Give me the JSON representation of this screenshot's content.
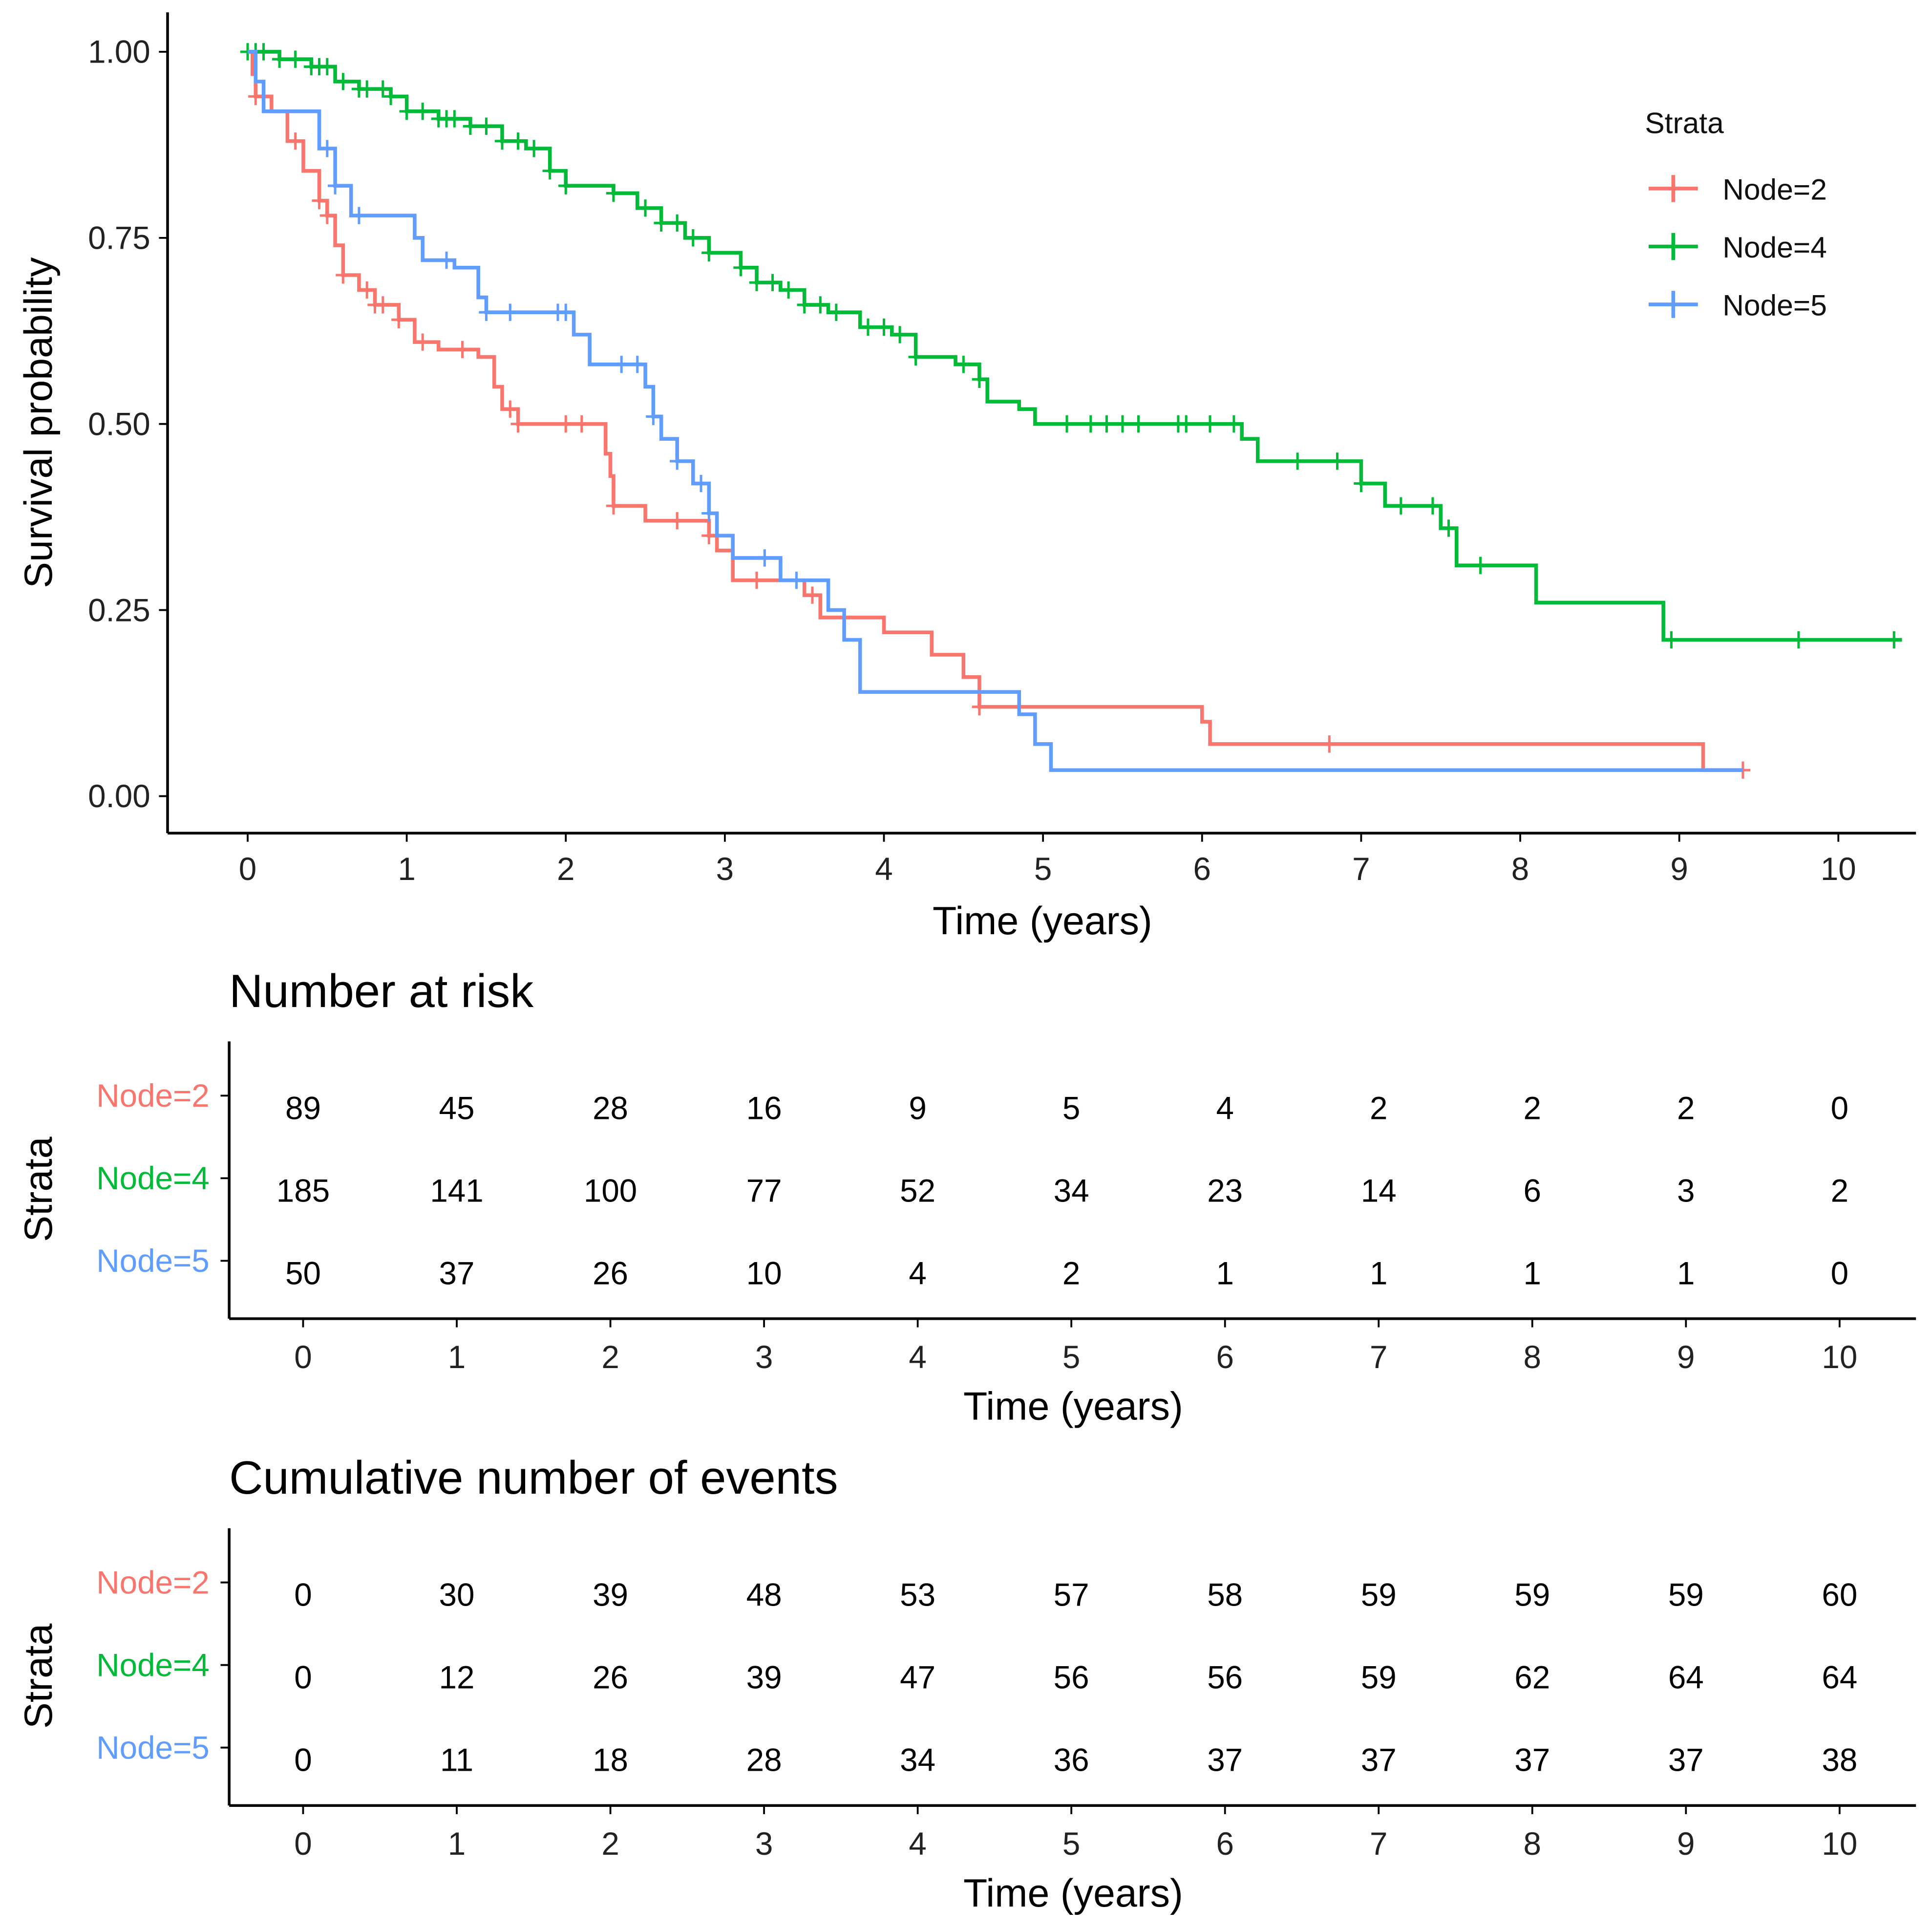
{
  "chart_data": [
    {
      "type": "line",
      "subtype": "kaplan-meier",
      "xlabel": "Time (years)",
      "ylabel": "Survival probability",
      "xlim": [
        0,
        10.5
      ],
      "ylim": [
        0,
        1
      ],
      "xticks": [
        "0",
        "1",
        "2",
        "3",
        "4",
        "5",
        "6",
        "7",
        "8",
        "9",
        "10"
      ],
      "yticks": [
        "0.00",
        "0.25",
        "0.50",
        "0.75",
        "1.00"
      ],
      "grid": false,
      "legend": {
        "title": "Strata",
        "position": "top-right"
      },
      "series": [
        {
          "name": "Node=2",
          "color": "#F8766D",
          "end": 9.4,
          "steps": [
            [
              0,
              1
            ],
            [
              0.03,
              0.97
            ],
            [
              0.05,
              0.94
            ],
            [
              0.15,
              0.92
            ],
            [
              0.25,
              0.88
            ],
            [
              0.35,
              0.84
            ],
            [
              0.45,
              0.8
            ],
            [
              0.5,
              0.78
            ],
            [
              0.55,
              0.74
            ],
            [
              0.6,
              0.7
            ],
            [
              0.7,
              0.68
            ],
            [
              0.8,
              0.66
            ],
            [
              0.95,
              0.64
            ],
            [
              1.05,
              0.61
            ],
            [
              1.2,
              0.6
            ],
            [
              1.45,
              0.59
            ],
            [
              1.55,
              0.55
            ],
            [
              1.6,
              0.52
            ],
            [
              1.7,
              0.5
            ],
            [
              2.25,
              0.46
            ],
            [
              2.28,
              0.43
            ],
            [
              2.3,
              0.39
            ],
            [
              2.5,
              0.37
            ],
            [
              2.9,
              0.35
            ],
            [
              2.95,
              0.33
            ],
            [
              3.05,
              0.29
            ],
            [
              3.5,
              0.27
            ],
            [
              3.6,
              0.24
            ],
            [
              4.0,
              0.22
            ],
            [
              4.3,
              0.19
            ],
            [
              4.5,
              0.16
            ],
            [
              4.6,
              0.12
            ],
            [
              6.0,
              0.1
            ],
            [
              6.05,
              0.07
            ],
            [
              9.15,
              0.035
            ]
          ],
          "censored": [
            0.05,
            0.3,
            0.45,
            0.5,
            0.6,
            0.75,
            0.8,
            0.85,
            0.95,
            1.1,
            1.35,
            1.65,
            1.7,
            2.0,
            2.1,
            2.3,
            2.7,
            2.9,
            3.2,
            3.55,
            4.6,
            6.8,
            9.4
          ]
        },
        {
          "name": "Node=4",
          "color": "#00BA38",
          "end": 10.4,
          "steps": [
            [
              0,
              1
            ],
            [
              0.2,
              0.99
            ],
            [
              0.4,
              0.98
            ],
            [
              0.55,
              0.96
            ],
            [
              0.7,
              0.95
            ],
            [
              0.9,
              0.94
            ],
            [
              1.0,
              0.92
            ],
            [
              1.2,
              0.91
            ],
            [
              1.4,
              0.9
            ],
            [
              1.6,
              0.88
            ],
            [
              1.75,
              0.87
            ],
            [
              1.9,
              0.84
            ],
            [
              2.0,
              0.82
            ],
            [
              2.3,
              0.81
            ],
            [
              2.45,
              0.79
            ],
            [
              2.6,
              0.77
            ],
            [
              2.75,
              0.75
            ],
            [
              2.9,
              0.73
            ],
            [
              3.1,
              0.71
            ],
            [
              3.2,
              0.69
            ],
            [
              3.35,
              0.68
            ],
            [
              3.5,
              0.66
            ],
            [
              3.65,
              0.65
            ],
            [
              3.85,
              0.63
            ],
            [
              4.05,
              0.62
            ],
            [
              4.2,
              0.59
            ],
            [
              4.45,
              0.58
            ],
            [
              4.6,
              0.56
            ],
            [
              4.65,
              0.53
            ],
            [
              4.85,
              0.52
            ],
            [
              4.95,
              0.5
            ],
            [
              6.25,
              0.48
            ],
            [
              6.35,
              0.45
            ],
            [
              7.0,
              0.42
            ],
            [
              7.15,
              0.39
            ],
            [
              7.5,
              0.36
            ],
            [
              7.6,
              0.31
            ],
            [
              8.1,
              0.26
            ],
            [
              8.9,
              0.21
            ]
          ],
          "censored": [
            0,
            0.05,
            0.1,
            0.2,
            0.3,
            0.4,
            0.45,
            0.5,
            0.6,
            0.7,
            0.75,
            0.85,
            0.9,
            1.0,
            1.1,
            1.2,
            1.25,
            1.3,
            1.4,
            1.5,
            1.6,
            1.7,
            1.8,
            1.9,
            2.0,
            2.3,
            2.5,
            2.6,
            2.7,
            2.8,
            2.9,
            3.1,
            3.2,
            3.3,
            3.4,
            3.5,
            3.6,
            3.7,
            3.9,
            4.0,
            4.1,
            4.2,
            4.5,
            4.6,
            5.15,
            5.3,
            5.4,
            5.5,
            5.6,
            5.85,
            5.9,
            6.05,
            6.2,
            6.6,
            6.85,
            7.0,
            7.25,
            7.45,
            7.55,
            7.75,
            8.95,
            9.75,
            10.35
          ]
        },
        {
          "name": "Node=5",
          "color": "#619CFF",
          "end": 9.4,
          "steps": [
            [
              0,
              1
            ],
            [
              0.05,
              0.96
            ],
            [
              0.1,
              0.92
            ],
            [
              0.45,
              0.87
            ],
            [
              0.55,
              0.82
            ],
            [
              0.65,
              0.78
            ],
            [
              1.05,
              0.75
            ],
            [
              1.1,
              0.72
            ],
            [
              1.3,
              0.71
            ],
            [
              1.45,
              0.67
            ],
            [
              1.5,
              0.65
            ],
            [
              2.05,
              0.62
            ],
            [
              2.15,
              0.58
            ],
            [
              2.5,
              0.55
            ],
            [
              2.55,
              0.51
            ],
            [
              2.6,
              0.48
            ],
            [
              2.7,
              0.45
            ],
            [
              2.8,
              0.42
            ],
            [
              2.9,
              0.38
            ],
            [
              2.95,
              0.35
            ],
            [
              3.05,
              0.32
            ],
            [
              3.35,
              0.29
            ],
            [
              3.65,
              0.25
            ],
            [
              3.75,
              0.21
            ],
            [
              3.85,
              0.14
            ],
            [
              4.85,
              0.11
            ],
            [
              4.95,
              0.07
            ],
            [
              5.05,
              0.035
            ]
          ],
          "censored": [
            0.5,
            0.55,
            0.7,
            1.25,
            1.5,
            1.65,
            1.95,
            2.0,
            2.35,
            2.45,
            2.55,
            2.7,
            2.85,
            2.9,
            3.25,
            3.45
          ]
        }
      ]
    },
    {
      "type": "table",
      "title": "Number at risk",
      "xlabel": "Time (years)",
      "ylabel": "Strata",
      "columns": [
        "0",
        "1",
        "2",
        "3",
        "4",
        "5",
        "6",
        "7",
        "8",
        "9",
        "10"
      ],
      "rows": [
        {
          "name": "Node=2",
          "color": "#F8766D",
          "values": [
            "89",
            "45",
            "28",
            "16",
            "9",
            "5",
            "4",
            "2",
            "2",
            "2",
            "0"
          ]
        },
        {
          "name": "Node=4",
          "color": "#00BA38",
          "values": [
            "185",
            "141",
            "100",
            "77",
            "52",
            "34",
            "23",
            "14",
            "6",
            "3",
            "2"
          ]
        },
        {
          "name": "Node=5",
          "color": "#619CFF",
          "values": [
            "50",
            "37",
            "26",
            "10",
            "4",
            "2",
            "1",
            "1",
            "1",
            "1",
            "0"
          ]
        }
      ]
    },
    {
      "type": "table",
      "title": "Cumulative number of events",
      "xlabel": "Time (years)",
      "ylabel": "Strata",
      "columns": [
        "0",
        "1",
        "2",
        "3",
        "4",
        "5",
        "6",
        "7",
        "8",
        "9",
        "10"
      ],
      "rows": [
        {
          "name": "Node=2",
          "color": "#F8766D",
          "values": [
            "0",
            "30",
            "39",
            "48",
            "53",
            "57",
            "58",
            "59",
            "59",
            "59",
            "60"
          ]
        },
        {
          "name": "Node=4",
          "color": "#00BA38",
          "values": [
            "0",
            "12",
            "26",
            "39",
            "47",
            "56",
            "56",
            "59",
            "62",
            "64",
            "64"
          ]
        },
        {
          "name": "Node=5",
          "color": "#619CFF",
          "values": [
            "0",
            "11",
            "18",
            "28",
            "34",
            "36",
            "37",
            "37",
            "37",
            "37",
            "38"
          ]
        }
      ]
    }
  ]
}
